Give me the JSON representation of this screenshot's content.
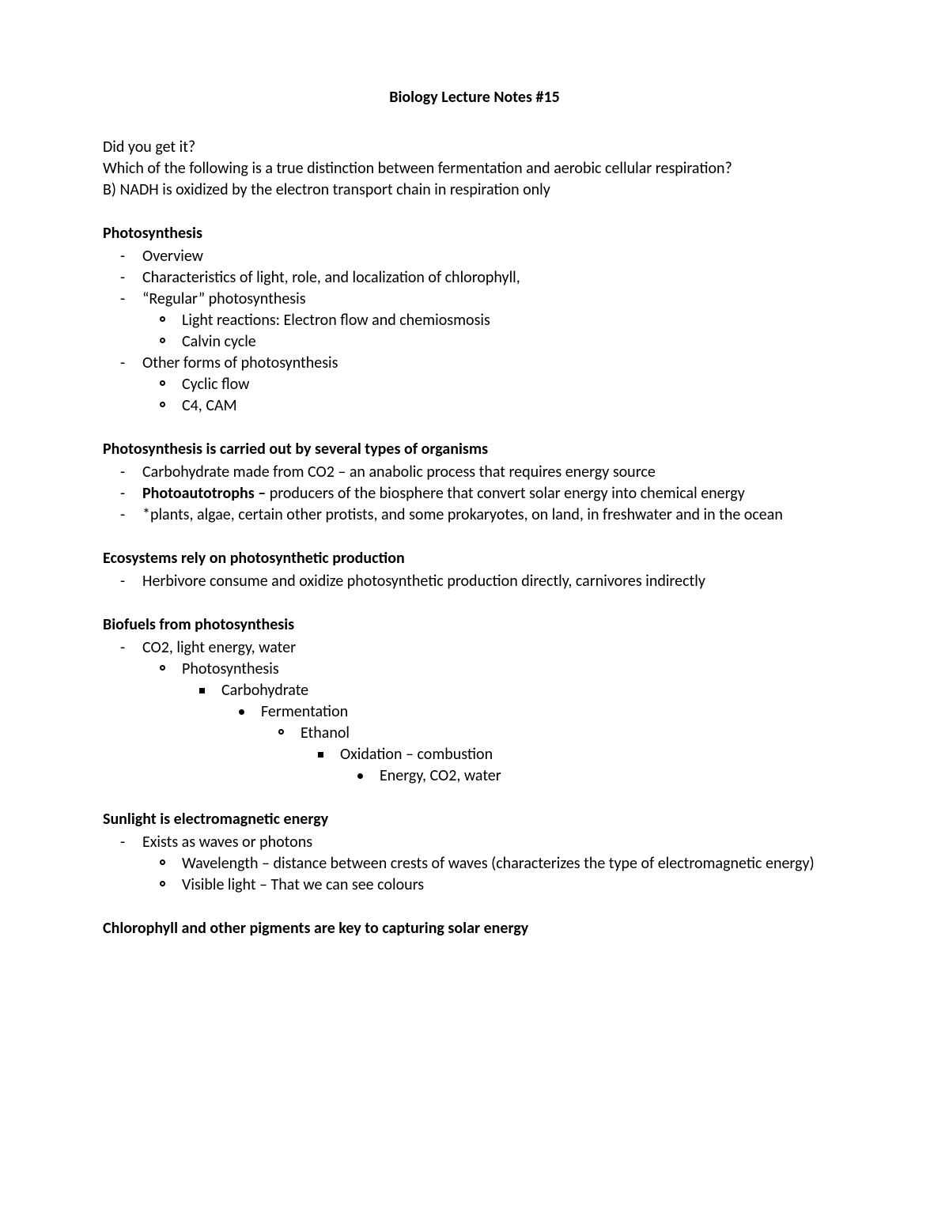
{
  "title": "Biology Lecture Notes #15",
  "intro": {
    "line1": "Did you get it?",
    "line2": "Which of the following is a true distinction between fermentation and aerobic cellular respiration?",
    "line3": "B) NADH is oxidized by the electron transport chain in respiration only"
  },
  "sections": {
    "photosynthesis": {
      "heading": "Photosynthesis",
      "items": {
        "i0": "Overview",
        "i1": "Characteristics of light, role, and localization of chlorophyll,",
        "i2": "“Regular” photosynthesis",
        "i2a": "Light reactions: Electron flow and chemiosmosis",
        "i2b": "Calvin cycle",
        "i3": "Other forms of photosynthesis",
        "i3a": "Cyclic flow",
        "i3b": "C4, CAM"
      }
    },
    "organisms": {
      "heading": "Photosynthesis is carried out by several types of organisms",
      "items": {
        "i0": "Carbohydrate made from CO2 – an anabolic process that requires energy source",
        "i1_label": "Photoautotrophs – ",
        "i1_rest": "producers of the biosphere that convert solar energy into chemical energy",
        "i2": "*plants, algae, certain other protists, and some prokaryotes, on land, in freshwater and in the ocean"
      }
    },
    "ecosystems": {
      "heading": "Ecosystems rely on photosynthetic production",
      "items": {
        "i0": "Herbivore consume and oxidize photosynthetic production directly, carnivores indirectly"
      }
    },
    "biofuels": {
      "heading": "Biofuels from photosynthesis",
      "items": {
        "i0": "CO2, light energy, water",
        "i0a": "Photosynthesis",
        "i0a1": "Carbohydrate",
        "i0a1a": "Fermentation",
        "i0a1a1": "Ethanol",
        "i0a1a1a": "Oxidation – combustion",
        "i0a1a1a1": "Energy, CO2, water"
      }
    },
    "sunlight": {
      "heading": "Sunlight is electromagnetic energy",
      "items": {
        "i0": "Exists as waves or photons",
        "i0a": "Wavelength – distance between crests of waves (characterizes the type of electromagnetic energy)",
        "i0b": "Visible light – That we can see colours"
      }
    },
    "chlorophyll": {
      "heading": "Chlorophyll and other pigments are key to capturing solar energy"
    }
  }
}
